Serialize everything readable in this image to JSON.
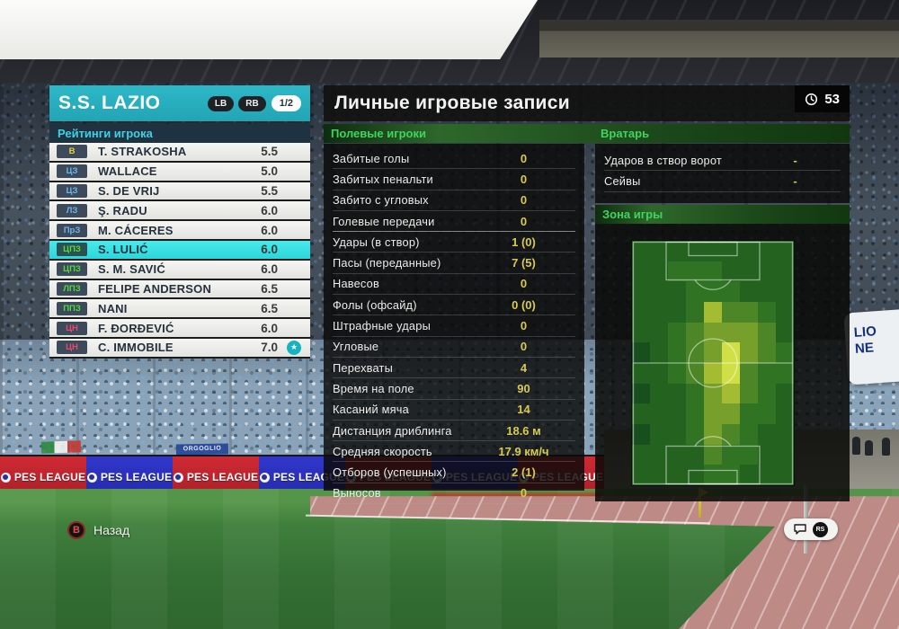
{
  "header": {
    "team_name": "S.S. LAZIO",
    "lb_label": "LB",
    "rb_label": "RB",
    "page_indicator": "1/2",
    "title": "Личные игровые записи",
    "time_value": "53"
  },
  "ratings_panel": {
    "title": "Рейтинги игрока",
    "players": [
      {
        "pos": "В",
        "role": "gk",
        "name": "T. STRAKOSHA",
        "rating": "5.5",
        "selected": false,
        "star": false
      },
      {
        "pos": "ЦЗ",
        "role": "def",
        "name": "WALLACE",
        "rating": "5.0",
        "selected": false,
        "star": false
      },
      {
        "pos": "ЦЗ",
        "role": "def",
        "name": "S. DE VRIJ",
        "rating": "5.5",
        "selected": false,
        "star": false
      },
      {
        "pos": "ЛЗ",
        "role": "def",
        "name": "Ş. RADU",
        "rating": "6.0",
        "selected": false,
        "star": false
      },
      {
        "pos": "ПрЗ",
        "role": "def",
        "name": "M. CÁCERES",
        "rating": "6.0",
        "selected": false,
        "star": false
      },
      {
        "pos": "ЦПЗ",
        "role": "mid",
        "name": "S. LULIĆ",
        "rating": "6.0",
        "selected": true,
        "star": false
      },
      {
        "pos": "ЦПЗ",
        "role": "mid",
        "name": "S. M. SAVIĆ",
        "rating": "6.0",
        "selected": false,
        "star": false
      },
      {
        "pos": "ЛПЗ",
        "role": "mid",
        "name": "FELIPE ANDERSON",
        "rating": "6.5",
        "selected": false,
        "star": false
      },
      {
        "pos": "ППЗ",
        "role": "mid",
        "name": "NANI",
        "rating": "6.5",
        "selected": false,
        "star": false
      },
      {
        "pos": "ЦН",
        "role": "fwd",
        "name": "F. ĐORĐEVIĆ",
        "rating": "6.0",
        "selected": false,
        "star": false
      },
      {
        "pos": "ЦН",
        "role": "fwd",
        "name": "C. IMMOBILE",
        "rating": "7.0",
        "selected": false,
        "star": true
      }
    ]
  },
  "stats_panel": {
    "field_players_label": "Полевые игроки",
    "goalkeeper_label": "Вратарь",
    "zone_label": "Зона игры",
    "field_rows": [
      {
        "label": "Забитые голы",
        "value": "0",
        "group_end": false
      },
      {
        "label": "Забитых пенальти",
        "value": "0",
        "group_end": false
      },
      {
        "label": "Забито с угловых",
        "value": "0",
        "group_end": false
      },
      {
        "label": "Голевые передачи",
        "value": "0",
        "group_end": true
      },
      {
        "label": "Удары (в створ)",
        "value": "1 (0)",
        "group_end": false
      },
      {
        "label": "Пасы (переданные)",
        "value": "7 (5)",
        "group_end": false
      },
      {
        "label": "Навесов",
        "value": "0",
        "group_end": false
      },
      {
        "label": "Фолы (офсайд)",
        "value": "0 (0)",
        "group_end": false
      },
      {
        "label": "Штрафные удары",
        "value": "0",
        "group_end": false
      },
      {
        "label": "Угловые",
        "value": "0",
        "group_end": false
      },
      {
        "label": "Перехваты",
        "value": "4",
        "group_end": false
      },
      {
        "label": "Время на поле",
        "value": "90",
        "group_end": false
      },
      {
        "label": "Касаний мяча",
        "value": "14",
        "group_end": false
      },
      {
        "label": "Дистанция дриблинга",
        "value": "18.6 м",
        "group_end": false
      },
      {
        "label": "Средняя скорость",
        "value": "17.9 км/ч",
        "group_end": false
      },
      {
        "label": "Отборов (успешных)",
        "value": "2 (1)",
        "group_end": false
      },
      {
        "label": "Выносов",
        "value": "0",
        "group_end": false
      }
    ],
    "gk_rows": [
      {
        "label": "Ударов в створ ворот",
        "value": "-",
        "group_end": false
      },
      {
        "label": "Сейвы",
        "value": "-",
        "group_end": false
      }
    ]
  },
  "heatmap": {
    "palette": [
      "#184f1e",
      "#23621f",
      "#2f7323",
      "#4c8627",
      "#76a02b",
      "#a3bc31",
      "#cfdf45"
    ],
    "grid": [
      [
        1,
        1,
        1,
        1,
        1,
        1,
        1,
        1,
        1
      ],
      [
        1,
        1,
        2,
        2,
        2,
        1,
        1,
        1,
        1
      ],
      [
        1,
        1,
        1,
        2,
        2,
        2,
        1,
        1,
        1
      ],
      [
        1,
        1,
        1,
        2,
        5,
        3,
        3,
        2,
        1
      ],
      [
        1,
        1,
        2,
        3,
        4,
        4,
        4,
        3,
        1
      ],
      [
        0,
        1,
        2,
        3,
        4,
        6,
        4,
        3,
        2
      ],
      [
        1,
        1,
        2,
        3,
        5,
        6,
        3,
        2,
        2
      ],
      [
        0,
        1,
        1,
        2,
        4,
        5,
        3,
        2,
        1
      ],
      [
        1,
        1,
        1,
        2,
        4,
        4,
        2,
        2,
        1
      ],
      [
        0,
        1,
        1,
        2,
        4,
        3,
        2,
        1,
        1
      ],
      [
        1,
        1,
        1,
        1,
        3,
        2,
        2,
        1,
        1
      ],
      [
        1,
        1,
        1,
        1,
        2,
        2,
        1,
        1,
        1
      ]
    ]
  },
  "footer": {
    "back_button": "B",
    "back_label": "Назад",
    "rs_button": "RS"
  },
  "background": {
    "adboard_text": "PES LEAGUE",
    "adboard_repeats": 7,
    "banner_text": "ORGOGLIO",
    "sign_lines": [
      "LIO",
      "NE"
    ]
  },
  "colors": {
    "teal-header": "#2db8c8",
    "selected-row": "#2cd6da",
    "cyan-label": "#3cd2e2",
    "green-label": "#3fd45f",
    "value-yellow": "#d8ca4e",
    "pos-gk": "#e6d23c",
    "pos-def": "#6cb6e8",
    "pos-mid": "#52d83a",
    "pos-fwd": "#e8486a"
  }
}
